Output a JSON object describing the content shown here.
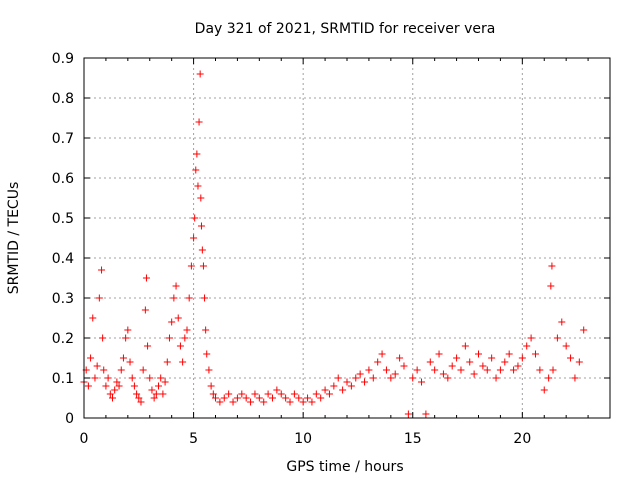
{
  "chart_data": {
    "type": "scatter",
    "title": "Day 321 of 2021, SRMTID for receiver vera",
    "xlabel": "GPS time / hours",
    "ylabel": "SRMTID / TECUs",
    "xlim": [
      0,
      24
    ],
    "ylim": [
      0,
      0.9
    ],
    "xticks": [
      0,
      5,
      10,
      15,
      20
    ],
    "yticks": [
      0,
      0.1,
      0.2,
      0.3,
      0.4,
      0.5,
      0.6,
      0.7,
      0.8,
      0.9
    ],
    "xtick_labels": [
      "0",
      "5",
      "10",
      "15",
      "20"
    ],
    "ytick_labels": [
      "0",
      "0.1",
      "0.2",
      "0.3",
      "0.4",
      "0.5",
      "0.6",
      "0.7",
      "0.8",
      "0.9"
    ],
    "grid": true,
    "marker": "+",
    "color": "#ff0000",
    "series": [
      {
        "name": "SRMTID",
        "x": [
          0.0,
          0.1,
          0.2,
          0.3,
          0.4,
          0.5,
          0.6,
          0.7,
          0.8,
          0.85,
          0.9,
          1.0,
          1.1,
          1.2,
          1.3,
          1.4,
          1.5,
          1.6,
          1.7,
          1.8,
          1.9,
          2.0,
          2.1,
          2.2,
          2.3,
          2.4,
          2.5,
          2.6,
          2.7,
          2.8,
          2.85,
          2.9,
          3.0,
          3.1,
          3.2,
          3.3,
          3.4,
          3.5,
          3.6,
          3.7,
          3.8,
          3.9,
          4.0,
          4.1,
          4.2,
          4.3,
          4.4,
          4.5,
          4.6,
          4.7,
          4.8,
          4.9,
          5.0,
          5.05,
          5.1,
          5.15,
          5.2,
          5.25,
          5.3,
          5.33,
          5.36,
          5.4,
          5.45,
          5.5,
          5.55,
          5.6,
          5.7,
          5.8,
          5.9,
          6.0,
          6.2,
          6.4,
          6.6,
          6.8,
          7.0,
          7.2,
          7.4,
          7.6,
          7.8,
          8.0,
          8.2,
          8.4,
          8.6,
          8.8,
          9.0,
          9.2,
          9.4,
          9.6,
          9.8,
          10.0,
          10.2,
          10.4,
          10.6,
          10.8,
          11.0,
          11.2,
          11.4,
          11.6,
          11.8,
          12.0,
          12.2,
          12.4,
          12.6,
          12.8,
          13.0,
          13.2,
          13.4,
          13.6,
          13.8,
          14.0,
          14.2,
          14.4,
          14.6,
          14.8,
          15.0,
          15.2,
          15.4,
          15.6,
          15.8,
          16.0,
          16.2,
          16.4,
          16.6,
          16.8,
          17.0,
          17.2,
          17.4,
          17.6,
          17.8,
          18.0,
          18.2,
          18.4,
          18.6,
          18.8,
          19.0,
          19.2,
          19.4,
          19.6,
          19.8,
          20.0,
          20.2,
          20.4,
          20.6,
          20.8,
          21.0,
          21.2,
          21.3,
          21.35,
          21.4,
          21.6,
          21.8,
          22.0,
          22.2,
          22.4,
          22.6,
          22.8
        ],
        "y": [
          0.09,
          0.12,
          0.08,
          0.15,
          0.25,
          0.1,
          0.13,
          0.3,
          0.37,
          0.2,
          0.12,
          0.08,
          0.1,
          0.06,
          0.05,
          0.07,
          0.09,
          0.08,
          0.12,
          0.15,
          0.2,
          0.22,
          0.14,
          0.1,
          0.08,
          0.06,
          0.05,
          0.04,
          0.12,
          0.27,
          0.35,
          0.18,
          0.1,
          0.07,
          0.05,
          0.06,
          0.08,
          0.1,
          0.06,
          0.09,
          0.14,
          0.2,
          0.24,
          0.3,
          0.33,
          0.25,
          0.18,
          0.14,
          0.2,
          0.22,
          0.3,
          0.38,
          0.45,
          0.5,
          0.62,
          0.66,
          0.58,
          0.74,
          0.86,
          0.55,
          0.48,
          0.42,
          0.38,
          0.3,
          0.22,
          0.16,
          0.12,
          0.08,
          0.06,
          0.05,
          0.04,
          0.05,
          0.06,
          0.04,
          0.05,
          0.06,
          0.05,
          0.04,
          0.06,
          0.05,
          0.04,
          0.06,
          0.05,
          0.07,
          0.06,
          0.05,
          0.04,
          0.06,
          0.05,
          0.04,
          0.05,
          0.04,
          0.06,
          0.05,
          0.07,
          0.06,
          0.08,
          0.1,
          0.07,
          0.09,
          0.08,
          0.1,
          0.11,
          0.09,
          0.12,
          0.1,
          0.14,
          0.16,
          0.12,
          0.1,
          0.11,
          0.15,
          0.13,
          0.01,
          0.1,
          0.12,
          0.09,
          0.01,
          0.14,
          0.12,
          0.16,
          0.11,
          0.1,
          0.13,
          0.15,
          0.12,
          0.18,
          0.14,
          0.11,
          0.16,
          0.13,
          0.12,
          0.15,
          0.1,
          0.12,
          0.14,
          0.16,
          0.12,
          0.13,
          0.15,
          0.18,
          0.2,
          0.16,
          0.12,
          0.07,
          0.1,
          0.33,
          0.38,
          0.12,
          0.2,
          0.24,
          0.18,
          0.15,
          0.1,
          0.14,
          0.22
        ]
      }
    ]
  }
}
